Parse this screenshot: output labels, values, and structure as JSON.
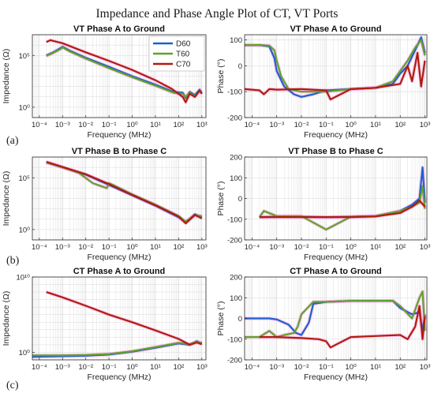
{
  "figure_title": "Impedance and Phase Angle Plot of CT, VT Ports",
  "row_labels": [
    "(a)",
    "(b)",
    "(c)"
  ],
  "colors": {
    "D60": "#1f5fd0",
    "T60": "#5ea32b",
    "C70": "#b01c10",
    "halo": "#ff7fd6",
    "axis": "#262626",
    "grid": "#d9d9d9"
  },
  "chart_data": [
    {
      "type": "line",
      "title": "VT Phase A to Ground",
      "xlabel": "Frequency (MHz)",
      "ylabel": "Impedance (Ω)",
      "xscale": "log",
      "xlim": [
        5e-05,
        1500
      ],
      "yscale": "log",
      "ylim": [
        0.1,
        10000000
      ],
      "xticks": [
        "10⁻⁴",
        "10⁻³",
        "10⁻²",
        "10⁻¹",
        "10⁰",
        "10¹",
        "10²",
        "10³"
      ],
      "yticks": [
        {
          "value": 1,
          "label": "10⁰"
        },
        {
          "value": 100000,
          "label": "10⁵"
        }
      ],
      "grid": true,
      "legend": {
        "position": "top-right",
        "entries": [
          "D60",
          "T60",
          "C70"
        ]
      },
      "series": [
        {
          "name": "D60",
          "x": [
            0.0002,
            0.0004,
            0.0008,
            0.001,
            0.002,
            0.01,
            0.1,
            1,
            10,
            60,
            150,
            200,
            300,
            500,
            800,
            1000
          ],
          "y": [
            100000,
            200000,
            500000,
            700000,
            300000,
            60000,
            8000,
            1000,
            150,
            30,
            25,
            8,
            30,
            15,
            50,
            20
          ]
        },
        {
          "name": "T60",
          "x": [
            0.0002,
            0.0004,
            0.0008,
            0.001,
            0.002,
            0.01,
            0.1,
            1,
            10,
            60,
            150,
            200,
            300,
            500,
            800,
            1000
          ],
          "y": [
            90000,
            180000,
            400000,
            600000,
            250000,
            50000,
            6000,
            800,
            120,
            25,
            20,
            10,
            25,
            12,
            40,
            30
          ]
        },
        {
          "name": "C70",
          "x": [
            0.0002,
            0.0003,
            0.001,
            0.01,
            0.1,
            1,
            10,
            50,
            150,
            200,
            300,
            500,
            800,
            1000
          ],
          "y": [
            2000000,
            3000000,
            1500000,
            200000,
            30000,
            4000,
            400,
            60,
            10,
            3,
            20,
            10,
            40,
            20
          ]
        }
      ]
    },
    {
      "type": "line",
      "title": "VT Phase A to Ground",
      "xlabel": "Frequency (MHz)",
      "ylabel": "Phase (°)",
      "xscale": "log",
      "xlim": [
        5e-05,
        1200
      ],
      "ylim": [
        -200,
        120
      ],
      "xticks": [
        "10⁻⁴",
        "10⁻³",
        "10⁻²",
        "10⁻¹",
        "10⁰",
        "10¹",
        "10²",
        "10³"
      ],
      "yticks": [
        {
          "value": 100,
          "label": "100"
        },
        {
          "value": 0,
          "label": "0"
        },
        {
          "value": -100,
          "label": "-100"
        },
        {
          "value": -200,
          "label": "-200"
        }
      ],
      "grid": true,
      "series": [
        {
          "name": "D60",
          "x": [
            5e-05,
            0.0002,
            0.0005,
            0.0008,
            0.001,
            0.002,
            0.005,
            0.01,
            0.03,
            0.1,
            1,
            10,
            50,
            100,
            200,
            400,
            700,
            1000
          ],
          "y": [
            80,
            80,
            75,
            30,
            -20,
            -80,
            -110,
            -120,
            -110,
            -95,
            -90,
            -85,
            -70,
            -30,
            0,
            60,
            110,
            50
          ]
        },
        {
          "name": "T60",
          "x": [
            5e-05,
            0.0002,
            0.0005,
            0.0008,
            0.001,
            0.0015,
            0.003,
            0.01,
            0.1,
            1,
            10,
            50,
            100,
            200,
            400,
            700,
            1000
          ],
          "y": [
            80,
            80,
            78,
            60,
            20,
            -40,
            -90,
            -100,
            -100,
            -90,
            -85,
            -60,
            -20,
            20,
            70,
            100,
            40
          ]
        },
        {
          "name": "C70",
          "x": [
            5e-05,
            0.0002,
            0.0003,
            0.0005,
            0.001,
            0.01,
            0.1,
            0.15,
            1,
            10,
            100,
            200,
            300,
            500,
            700,
            1000
          ],
          "y": [
            -90,
            -95,
            -110,
            -90,
            -92,
            -90,
            -95,
            -130,
            -90,
            -85,
            -70,
            0,
            -60,
            50,
            -80,
            20
          ]
        }
      ]
    },
    {
      "type": "line",
      "title": "VT Phase B to Phase C",
      "xlabel": "Frequency (MHz)",
      "ylabel": "Impedance (Ω)",
      "xscale": "log",
      "xlim": [
        5e-05,
        1500
      ],
      "yscale": "log",
      "ylim": [
        0.1,
        10000000
      ],
      "xticks": [
        "10⁻⁴",
        "10⁻³",
        "10⁻²",
        "10⁻¹",
        "10⁰",
        "10¹",
        "10²",
        "10³"
      ],
      "yticks": [
        {
          "value": 1,
          "label": "10⁰"
        },
        {
          "value": 100000,
          "label": "10⁵"
        }
      ],
      "grid": true,
      "series": [
        {
          "name": "D60",
          "x": [
            0.0002,
            0.001,
            0.01,
            0.1,
            1,
            10,
            100,
            200,
            500,
            1000
          ],
          "y": [
            3000000,
            1000000,
            200000,
            20000,
            2000,
            200,
            15,
            5,
            30,
            15
          ]
        },
        {
          "name": "T60",
          "x": [
            0.0002,
            0.001,
            0.005,
            0.02,
            0.08,
            0.1,
            0.15,
            1,
            10,
            100,
            200,
            500,
            1000
          ],
          "y": [
            3000000,
            1000000,
            300000,
            30000,
            10000,
            30000,
            20000,
            2500,
            250,
            20,
            6,
            25,
            20
          ]
        },
        {
          "name": "C70",
          "x": [
            0.0002,
            0.001,
            0.01,
            0.1,
            1,
            10,
            100,
            200,
            500,
            1000
          ],
          "y": [
            3500000,
            1100000,
            220000,
            25000,
            2200,
            220,
            18,
            4,
            25,
            12
          ]
        }
      ]
    },
    {
      "type": "line",
      "title": "VT Phase B to Phase C",
      "xlabel": "Frequency (MHz)",
      "ylabel": "Phase (°)",
      "xscale": "log",
      "xlim": [
        5e-05,
        1200
      ],
      "ylim": [
        -200,
        200
      ],
      "xticks": [
        "10⁻⁴",
        "10⁻³",
        "10⁻²",
        "10⁻¹",
        "10⁰",
        "10¹",
        "10²",
        "10³"
      ],
      "yticks": [
        {
          "value": 200,
          "label": "200"
        },
        {
          "value": 100,
          "label": "100"
        },
        {
          "value": 0,
          "label": "0"
        },
        {
          "value": -100,
          "label": "-100"
        },
        {
          "value": -200,
          "label": "-200"
        }
      ],
      "grid": true,
      "series": [
        {
          "name": "D60",
          "x": [
            0.0002,
            0.001,
            0.01,
            0.1,
            1,
            10,
            100,
            300,
            600,
            800,
            1000
          ],
          "y": [
            -90,
            -88,
            -88,
            -90,
            -88,
            -85,
            -60,
            -30,
            0,
            150,
            -20
          ]
        },
        {
          "name": "T60",
          "x": [
            0.0002,
            0.0003,
            0.001,
            0.01,
            0.1,
            1,
            10,
            100,
            300,
            600,
            800,
            1000
          ],
          "y": [
            -90,
            -60,
            -85,
            -85,
            -150,
            -88,
            -85,
            -60,
            -40,
            -20,
            60,
            -50
          ]
        },
        {
          "name": "C70",
          "x": [
            0.0002,
            0.001,
            0.01,
            0.1,
            1,
            10,
            100,
            300,
            600,
            1000
          ],
          "y": [
            -90,
            -90,
            -90,
            -90,
            -90,
            -87,
            -70,
            -40,
            -10,
            -40
          ]
        }
      ]
    },
    {
      "type": "line",
      "title": "CT Phase A to Ground",
      "xlabel": "Frequency (MHz)",
      "ylabel": "Impedance (Ω)",
      "xscale": "log",
      "xlim": [
        5e-05,
        1500
      ],
      "yscale": "log",
      "ylim": [
        0.1,
        10000000000
      ],
      "xticks": [
        "10⁻⁴",
        "10⁻³",
        "10⁻²",
        "10⁻¹",
        "10⁰",
        "10¹",
        "10²",
        "10³"
      ],
      "yticks": [
        {
          "value": 1,
          "label": "10⁰"
        },
        {
          "value": 10000000000,
          "label": "10¹⁰"
        }
      ],
      "grid": true,
      "series": [
        {
          "name": "D60",
          "x": [
            5e-05,
            0.001,
            0.01,
            0.1,
            1,
            10,
            100,
            300,
            600,
            1000
          ],
          "y": [
            0.25,
            0.3,
            0.35,
            0.5,
            1.2,
            4,
            15,
            10,
            30,
            15
          ]
        },
        {
          "name": "T60",
          "x": [
            5e-05,
            0.001,
            0.01,
            0.1,
            1,
            10,
            100,
            300,
            600,
            1000
          ],
          "y": [
            0.4,
            0.4,
            0.45,
            0.6,
            1.4,
            5,
            18,
            12,
            25,
            18
          ]
        },
        {
          "name": "C70",
          "x": [
            0.0002,
            0.001,
            0.01,
            0.1,
            1,
            10,
            100,
            300,
            600,
            1000
          ],
          "y": [
            100000000,
            20000000,
            1500000,
            100000,
            10000,
            800,
            60,
            10,
            20,
            12
          ]
        }
      ]
    },
    {
      "type": "line",
      "title": "CT Phase A to Ground",
      "xlabel": "Frequency (MHz)",
      "ylabel": "Phase (°)",
      "xscale": "log",
      "xlim": [
        5e-05,
        1200
      ],
      "ylim": [
        -200,
        200
      ],
      "xticks": [
        "10⁻⁴",
        "10⁻³",
        "10⁻²",
        "10⁻¹",
        "10⁰",
        "10¹",
        "10²",
        "10³"
      ],
      "yticks": [
        {
          "value": 200,
          "label": "200"
        },
        {
          "value": 100,
          "label": "100"
        },
        {
          "value": 0,
          "label": "0"
        },
        {
          "value": -100,
          "label": "-100"
        },
        {
          "value": -200,
          "label": "-200"
        }
      ],
      "grid": true,
      "series": [
        {
          "name": "D60",
          "x": [
            5e-05,
            0.0005,
            0.001,
            0.003,
            0.006,
            0.01,
            0.02,
            0.03,
            0.1,
            1,
            10,
            50,
            100,
            300,
            600,
            800,
            1000
          ],
          "y": [
            0,
            0,
            -5,
            -30,
            -70,
            -80,
            -20,
            70,
            80,
            85,
            85,
            85,
            50,
            20,
            30,
            -60,
            20
          ]
        },
        {
          "name": "T60",
          "x": [
            5e-05,
            0.0002,
            0.0005,
            0.001,
            0.002,
            0.005,
            0.007,
            0.01,
            0.03,
            0.1,
            1,
            10,
            50,
            100,
            300,
            600,
            800,
            1000
          ],
          "y": [
            -90,
            -90,
            -60,
            -90,
            -80,
            -70,
            -40,
            20,
            80,
            80,
            85,
            85,
            85,
            60,
            0,
            100,
            130,
            -60
          ]
        },
        {
          "name": "C70",
          "x": [
            0.0002,
            0.001,
            0.01,
            0.05,
            0.1,
            0.15,
            1,
            10,
            100,
            200,
            400,
            600,
            800,
            1000
          ],
          "y": [
            -90,
            -90,
            -95,
            -100,
            -110,
            -140,
            -90,
            -85,
            -80,
            -100,
            -40,
            60,
            -100,
            10
          ]
        }
      ]
    }
  ]
}
